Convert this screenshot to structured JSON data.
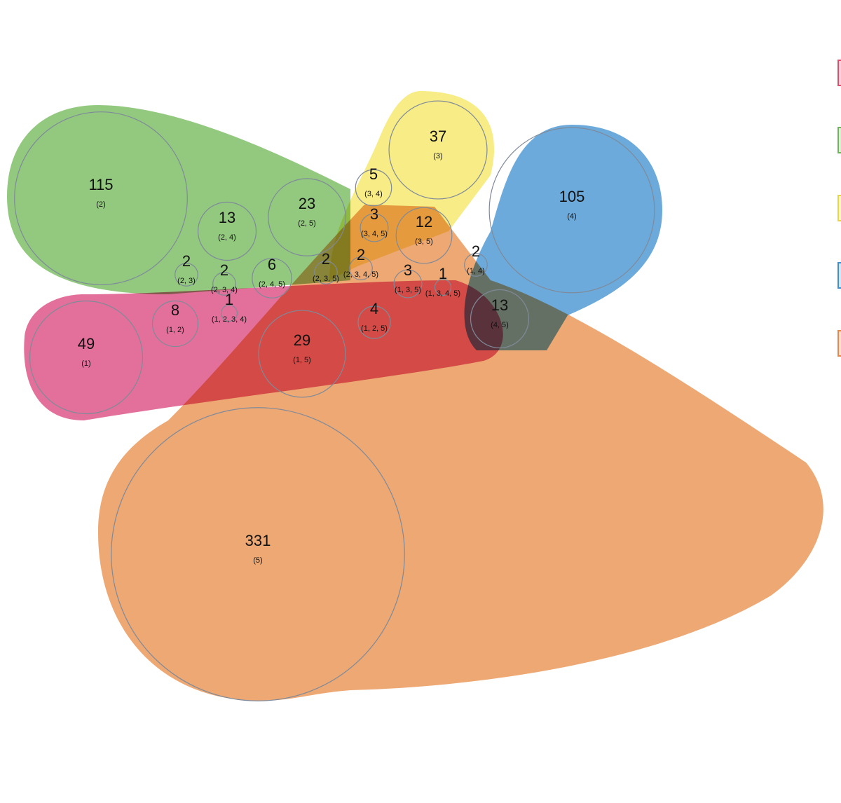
{
  "chart_data": {
    "type": "euler",
    "regions": [
      {
        "sets": "(1)",
        "count": 49
      },
      {
        "sets": "(2)",
        "count": 115
      },
      {
        "sets": "(3)",
        "count": 37
      },
      {
        "sets": "(4)",
        "count": 105
      },
      {
        "sets": "(5)",
        "count": 331
      },
      {
        "sets": "(1, 2)",
        "count": 8
      },
      {
        "sets": "(1, 5)",
        "count": 29
      },
      {
        "sets": "(2, 3)",
        "count": 2
      },
      {
        "sets": "(2, 4)",
        "count": 13
      },
      {
        "sets": "(2, 5)",
        "count": 23
      },
      {
        "sets": "(3, 4)",
        "count": 5
      },
      {
        "sets": "(3, 5)",
        "count": 12
      },
      {
        "sets": "(1, 4)",
        "count": 2
      },
      {
        "sets": "(4, 5)",
        "count": 13
      },
      {
        "sets": "(2, 3, 4)",
        "count": 2
      },
      {
        "sets": "(2, 4, 5)",
        "count": 6
      },
      {
        "sets": "(2, 3, 5)",
        "count": 2
      },
      {
        "sets": "(3, 4, 5)",
        "count": 3
      },
      {
        "sets": "(1, 2, 5)",
        "count": 4
      },
      {
        "sets": "(1, 3, 5)",
        "count": 3
      },
      {
        "sets": "(2, 3, 4, 5)",
        "count": 2
      },
      {
        "sets": "(1, 2, 3, 4)",
        "count": 1
      },
      {
        "sets": "(1, 3, 4, 5)",
        "count": 1
      }
    ]
  }
}
